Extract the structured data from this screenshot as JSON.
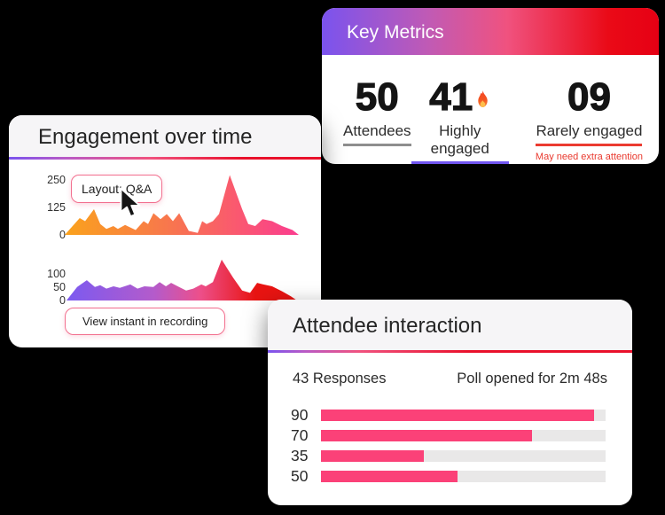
{
  "theme": {
    "page_bg": "#000000",
    "header_bg": "#F6F5F7",
    "pink_border": "#F2708F",
    "caption_red": "#E9392E",
    "bar_color": "#FB4178",
    "bar_track_color": "#E9E8E8",
    "header_gradient": [
      [
        "0%",
        "#7A53EE"
      ],
      [
        "32%",
        "#C15AB4"
      ],
      [
        "55%",
        "#F0527F"
      ],
      [
        "85%",
        "#EA0A17"
      ],
      [
        "100%",
        "#E60014"
      ]
    ],
    "rule_engagement_gradient": [
      [
        "0%",
        "#7A53EE"
      ],
      [
        "18%",
        "#B85AC6"
      ],
      [
        "45%",
        "#F0527F"
      ],
      [
        "75%",
        "#E9102B"
      ],
      [
        "100%",
        "#E9102B"
      ]
    ],
    "rule_attendee_gradient": [
      [
        "0%",
        "#7A53EE"
      ],
      [
        "10%",
        "#B85AC6"
      ],
      [
        "25%",
        "#F0527F"
      ],
      [
        "55%",
        "#E9102B"
      ],
      [
        "100%",
        "#E9102B"
      ]
    ]
  },
  "key_metrics_card": {
    "title": "Key Metrics",
    "metrics": [
      {
        "value": "50",
        "label": "Attendees",
        "underline_color": "#8E8E8E",
        "flame": false,
        "caption": ""
      },
      {
        "value": "41",
        "label": "Highly engaged",
        "underline_color": "#7155F0",
        "flame": true,
        "caption": ""
      },
      {
        "value": "09",
        "label": "Rarely engaged",
        "underline_color": "#EB3B30",
        "flame": false,
        "caption": "May need extra attention"
      }
    ]
  },
  "engagement_card": {
    "title": "Engagement over time",
    "tooltip_label": "Layout: Q&A",
    "button_label": "View instant in recording"
  },
  "attendee_card": {
    "title": "Attendee interaction",
    "responses_label": "43 Responses",
    "poll_label": "Poll opened for 2m 48s"
  },
  "chart_data": [
    {
      "id": "engagement-over-time-main",
      "type": "area",
      "title": "Engagement over time (upper chart)",
      "ymax": 300,
      "yticks": [
        250,
        125,
        0
      ],
      "grid": false,
      "gradient": [
        [
          "0%",
          "#FAA21C"
        ],
        [
          "45%",
          "#F8764E"
        ],
        [
          "100%",
          "#FB3D8F"
        ]
      ],
      "points": [
        [
          0,
          0
        ],
        [
          6.4,
          76
        ],
        [
          8.7,
          62
        ],
        [
          12.5,
          116
        ],
        [
          15.2,
          49
        ],
        [
          17.8,
          27
        ],
        [
          20.8,
          40
        ],
        [
          22.7,
          27
        ],
        [
          25.8,
          45
        ],
        [
          30.3,
          22
        ],
        [
          33.7,
          62
        ],
        [
          35.6,
          49
        ],
        [
          37.9,
          98
        ],
        [
          40.9,
          71
        ],
        [
          43.6,
          94
        ],
        [
          46.2,
          62
        ],
        [
          48.9,
          98
        ],
        [
          53,
          18
        ],
        [
          56.8,
          9
        ],
        [
          58.7,
          62
        ],
        [
          60.6,
          49
        ],
        [
          63.3,
          62
        ],
        [
          65.9,
          94
        ],
        [
          70.5,
          270
        ],
        [
          75.8,
          116
        ],
        [
          78.4,
          49
        ],
        [
          81.4,
          40
        ],
        [
          84.5,
          71
        ],
        [
          88.6,
          62
        ],
        [
          92.8,
          40
        ],
        [
          97.3,
          22
        ],
        [
          100,
          0
        ]
      ]
    },
    {
      "id": "engagement-over-time-secondary",
      "type": "area",
      "title": "Engagement over time (lower chart)",
      "ymax": 175,
      "yticks": [
        100,
        50,
        0
      ],
      "grid": false,
      "gradient": [
        [
          "0%",
          "#7B5AF0"
        ],
        [
          "38%",
          "#B45BCB"
        ],
        [
          "58%",
          "#ED4F8A"
        ],
        [
          "82%",
          "#E81412"
        ],
        [
          "100%",
          "#E81412"
        ]
      ],
      "points": [
        [
          0,
          0
        ],
        [
          4.6,
          51
        ],
        [
          8.8,
          77
        ],
        [
          12.3,
          51
        ],
        [
          14.6,
          58
        ],
        [
          17.3,
          45
        ],
        [
          20.4,
          54
        ],
        [
          23.1,
          48
        ],
        [
          27.7,
          61
        ],
        [
          30.8,
          45
        ],
        [
          33.8,
          54
        ],
        [
          37.7,
          51
        ],
        [
          40.4,
          70
        ],
        [
          43.1,
          54
        ],
        [
          45.4,
          67
        ],
        [
          48.8,
          51
        ],
        [
          51.9,
          38
        ],
        [
          55,
          45
        ],
        [
          58.5,
          61
        ],
        [
          60.4,
          54
        ],
        [
          63.5,
          70
        ],
        [
          67.3,
          155
        ],
        [
          72.3,
          86
        ],
        [
          76.2,
          38
        ],
        [
          79.6,
          29
        ],
        [
          82.7,
          67
        ],
        [
          85.4,
          61
        ],
        [
          89.2,
          54
        ],
        [
          93.5,
          35
        ],
        [
          97.3,
          16
        ],
        [
          100,
          0
        ]
      ]
    },
    {
      "id": "poll-responses",
      "type": "bar",
      "orientation": "horizontal",
      "title": "Attendee interaction poll responses",
      "categories": [
        "90",
        "70",
        "35",
        "50"
      ],
      "values": [
        90,
        70,
        35,
        50
      ],
      "width_pct": [
        96,
        74,
        36,
        48
      ],
      "xlim": [
        0,
        100
      ],
      "grid": false
    }
  ]
}
